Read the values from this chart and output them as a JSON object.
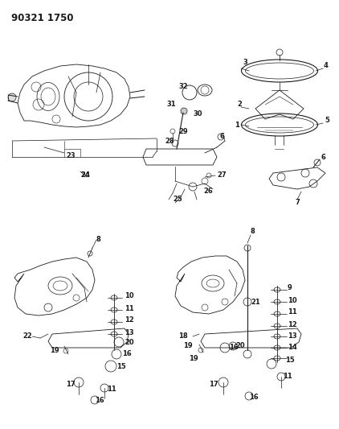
{
  "title_text": "90321 1750",
  "bg_color": "#ffffff",
  "line_color": "#1a1a1a",
  "figsize": [
    4.22,
    5.33
  ],
  "dpi": 100
}
